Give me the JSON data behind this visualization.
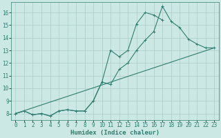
{
  "bg_color": "#cce8e4",
  "line_color": "#2e7d6e",
  "grid_color": "#aaccc8",
  "xlabel": "Humidex (Indice chaleur)",
  "xlim": [
    -0.5,
    23.5
  ],
  "ylim": [
    7.5,
    16.8
  ],
  "xticks": [
    0,
    1,
    2,
    3,
    4,
    5,
    6,
    7,
    8,
    9,
    10,
    11,
    12,
    13,
    14,
    15,
    16,
    17,
    18,
    19,
    20,
    21,
    22,
    23
  ],
  "yticks": [
    8,
    9,
    10,
    11,
    12,
    13,
    14,
    15,
    16
  ],
  "tick_fontsize": 5.5,
  "axis_fontsize": 6.5,
  "line1_x": [
    0,
    1,
    2,
    3,
    4,
    5,
    6,
    7,
    8,
    9,
    10,
    11,
    12,
    13,
    14,
    15,
    16,
    17
  ],
  "line1_y": [
    8.0,
    8.2,
    7.9,
    8.0,
    7.8,
    8.2,
    8.3,
    8.2,
    8.2,
    9.0,
    10.5,
    13.0,
    12.5,
    13.0,
    15.1,
    16.0,
    15.8,
    15.4
  ],
  "line2_x": [
    0,
    1,
    2,
    3,
    4,
    5,
    6,
    7,
    8,
    9,
    10,
    11,
    12,
    13,
    14,
    15,
    16,
    17,
    18,
    19,
    20,
    21,
    22,
    23
  ],
  "line2_y": [
    8.0,
    8.2,
    7.9,
    8.0,
    7.8,
    8.2,
    8.3,
    8.2,
    8.2,
    9.0,
    10.5,
    10.3,
    11.5,
    12.0,
    13.0,
    13.8,
    14.5,
    16.5,
    15.3,
    14.8,
    13.9,
    13.5,
    13.2,
    13.2
  ],
  "line3_x": [
    0,
    23
  ],
  "line3_y": [
    8.0,
    13.2
  ]
}
